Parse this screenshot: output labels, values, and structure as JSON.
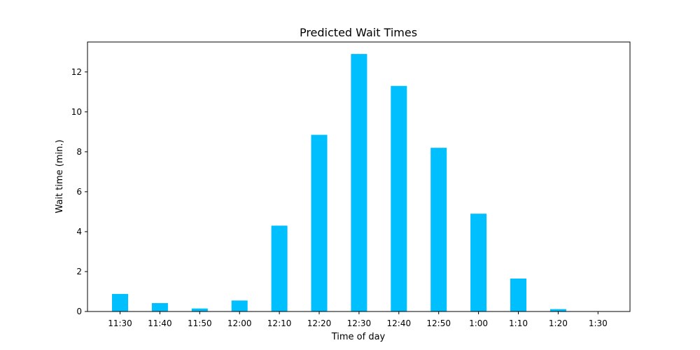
{
  "chart_data": {
    "type": "bar",
    "title": "Predicted Wait Times",
    "xlabel": "Time of day",
    "ylabel": "Wait time (min.)",
    "categories": [
      "11:30",
      "11:40",
      "11:50",
      "12:00",
      "12:10",
      "12:20",
      "12:30",
      "12:40",
      "12:50",
      "1:00",
      "1:10",
      "1:20",
      "1:30"
    ],
    "values": [
      0.88,
      0.42,
      0.15,
      0.55,
      4.3,
      8.85,
      12.9,
      11.3,
      8.2,
      4.9,
      1.65,
      0.12,
      0.0
    ],
    "ylim": [
      0,
      13.5
    ],
    "yticks": [
      0,
      2,
      4,
      6,
      8,
      10,
      12
    ],
    "grid": false,
    "bar_color": "#00BFFF"
  }
}
